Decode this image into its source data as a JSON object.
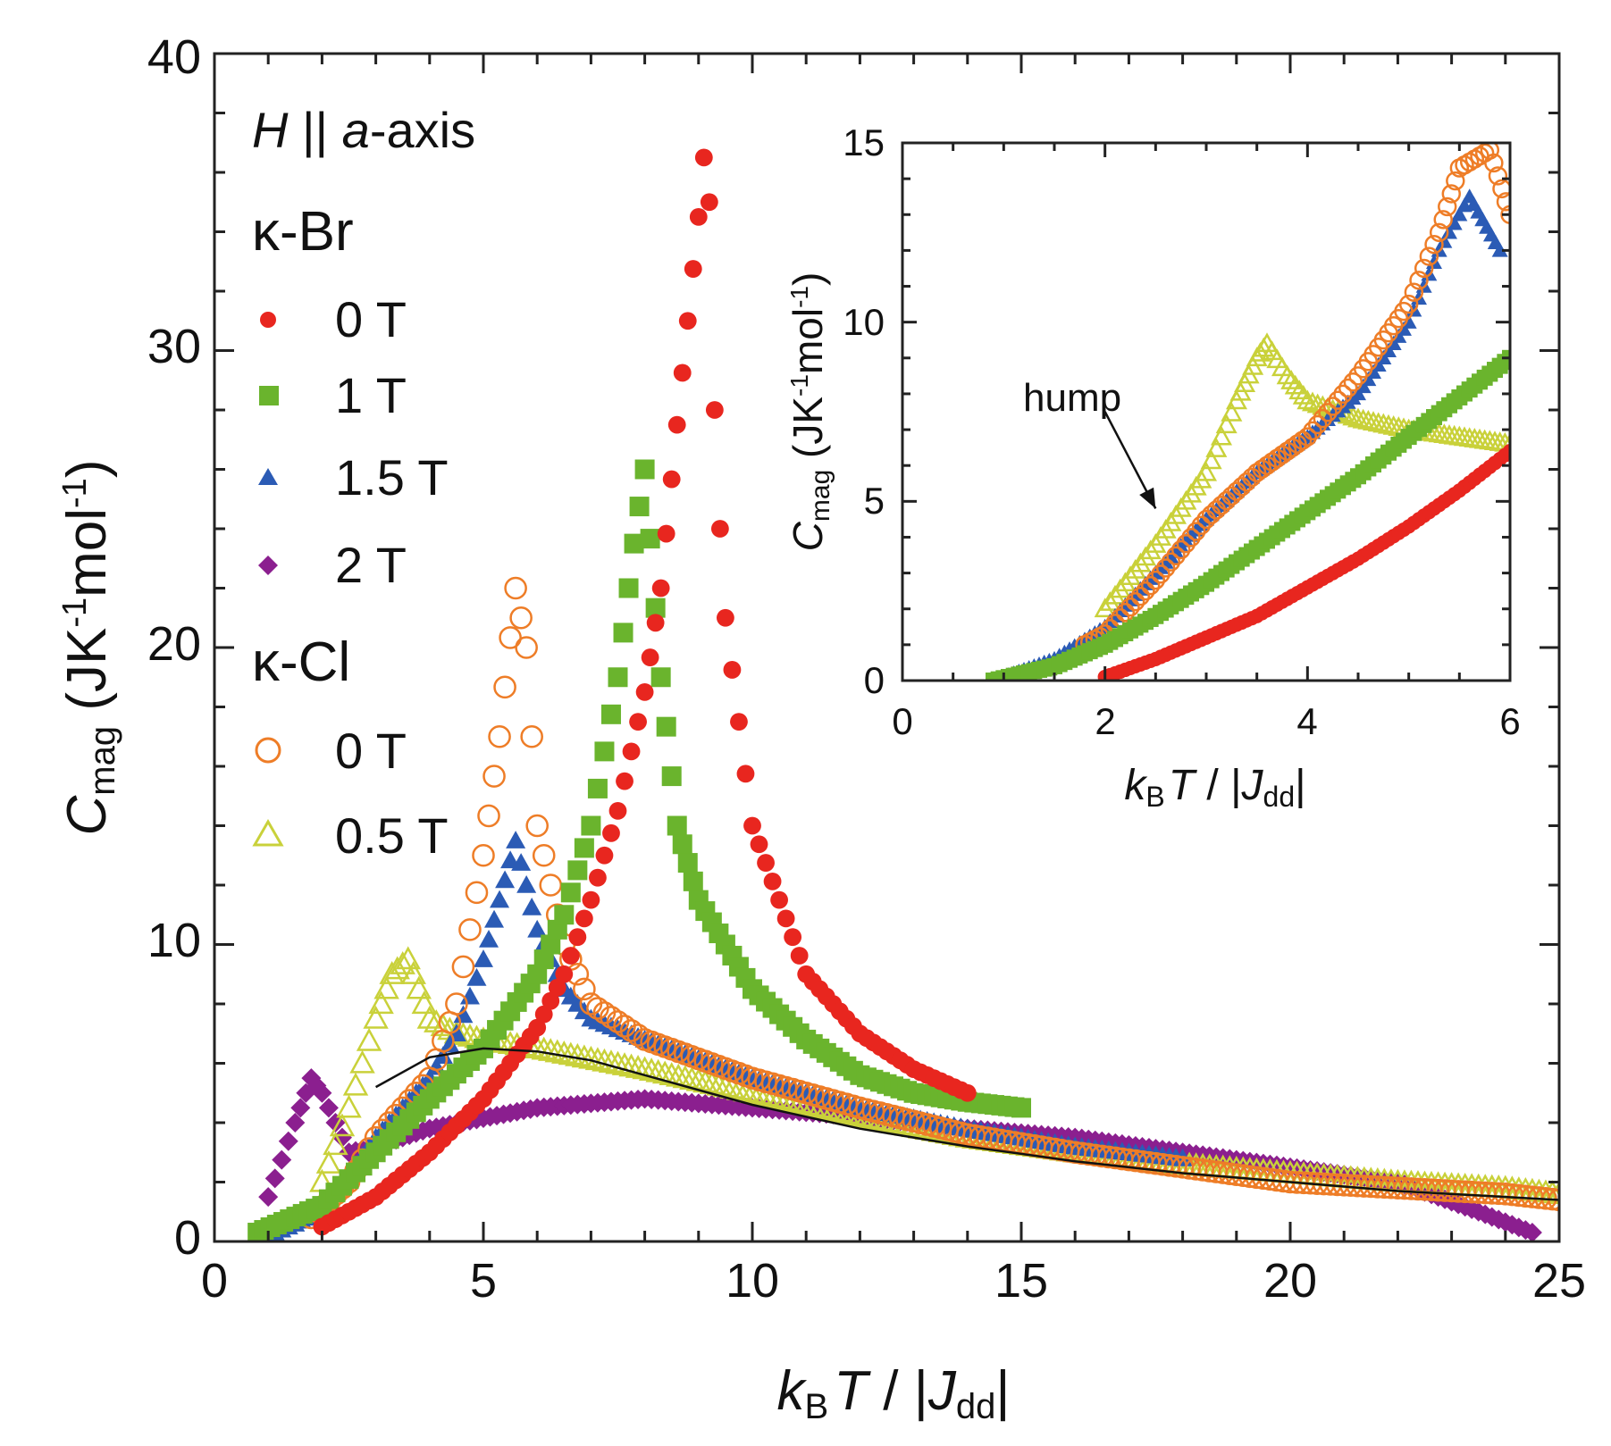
{
  "chart_data": [
    {
      "id": "main",
      "type": "scatter",
      "xlabel_parts": {
        "k": "k",
        "k_sub": "B",
        "T": "T",
        "sep": " / |",
        "J": "J",
        "J_sub": "dd",
        "end": "|"
      },
      "ylabel_parts": {
        "C": "C",
        "C_sub": "mag",
        "unit_a": " (JK",
        "exp1": "-1",
        "unit_b": "mol",
        "exp2": "-1",
        "unit_c": ")"
      },
      "xlim": [
        0,
        25
      ],
      "ylim": [
        0,
        40
      ],
      "xticks": [
        "0",
        "5",
        "10",
        "15",
        "20",
        "25"
      ],
      "yticks": [
        "0",
        "10",
        "20",
        "30",
        "40"
      ],
      "legend": {
        "title_H": "H",
        "title_rest": " || ",
        "title_a": "a",
        "title_axis": "-axis",
        "group1": "κ-Br",
        "group2": "κ-Cl",
        "placement": "top-left"
      },
      "series": [
        {
          "key": "br0",
          "group": "κ-Br",
          "name": "0 T",
          "color": "#e8261f",
          "marker": "circle-filled",
          "x": [
            2.0,
            3.0,
            4.0,
            5.0,
            6.0,
            6.5,
            7.0,
            7.5,
            8.0,
            8.3,
            8.6,
            8.8,
            9.0,
            9.1,
            9.2,
            9.3,
            9.4,
            9.5,
            10.0,
            11.0,
            12.0,
            13.0,
            14.0
          ],
          "y": [
            0.5,
            1.5,
            3.0,
            4.8,
            7.2,
            9.0,
            11.5,
            14.5,
            18.5,
            22.0,
            27.5,
            31.0,
            34.5,
            36.5,
            35.0,
            28.0,
            24.0,
            21.0,
            14.0,
            9.0,
            7.0,
            5.8,
            5.0
          ]
        },
        {
          "key": "br1",
          "group": "κ-Br",
          "name": "1 T",
          "color": "#6ab42d",
          "marker": "square-filled",
          "x": [
            0.8,
            2.0,
            3.0,
            4.0,
            5.0,
            6.0,
            6.5,
            7.0,
            7.5,
            7.8,
            8.0,
            8.3,
            8.6,
            9.0,
            10.0,
            11.0,
            12.0,
            13.0,
            14.0,
            15.0
          ],
          "y": [
            0.3,
            1.2,
            3.0,
            4.8,
            6.5,
            9.0,
            11.0,
            14.0,
            19.0,
            23.5,
            26.0,
            19.0,
            14.0,
            11.5,
            8.5,
            6.8,
            5.6,
            5.0,
            4.7,
            4.5
          ]
        },
        {
          "key": "br15",
          "group": "κ-Br",
          "name": "1.5 T",
          "color": "#2b5bb5",
          "marker": "triangle-filled",
          "x": [
            1.0,
            2.0,
            3.0,
            4.0,
            4.5,
            5.0,
            5.3,
            5.6,
            6.0,
            6.5,
            7.0,
            8.0,
            10.0,
            12.0,
            14.0,
            16.0,
            18.0
          ],
          "y": [
            0.2,
            1.0,
            3.5,
            5.5,
            7.0,
            9.5,
            11.5,
            13.5,
            10.5,
            8.5,
            7.5,
            6.8,
            5.5,
            4.5,
            3.8,
            3.2,
            2.8
          ]
        },
        {
          "key": "br2",
          "group": "κ-Br",
          "name": "2 T",
          "color": "#8b1f8f",
          "marker": "diamond-filled",
          "x": [
            1.0,
            1.5,
            1.8,
            2.0,
            2.5,
            3.0,
            4.0,
            6.0,
            8.0,
            10.0,
            12.0,
            14.0,
            16.0,
            18.0,
            20.0,
            22.0,
            23.5,
            24.5
          ],
          "y": [
            1.5,
            4.0,
            5.5,
            5.0,
            3.0,
            3.2,
            3.8,
            4.5,
            4.8,
            4.5,
            4.2,
            3.8,
            3.5,
            3.0,
            2.5,
            2.0,
            1.0,
            0.3
          ]
        },
        {
          "key": "cl0",
          "group": "κ-Cl",
          "name": "0 T",
          "color": "#ee7d27",
          "marker": "circle-open",
          "x": [
            1.8,
            2.5,
            3.0,
            4.0,
            4.5,
            5.0,
            5.3,
            5.6,
            5.8,
            6.0,
            6.5,
            7.0,
            8.0,
            10.0,
            12.0,
            14.0,
            16.0,
            18.0,
            20.0,
            22.0,
            24.0,
            25.0
          ],
          "y": [
            0.8,
            2.0,
            3.5,
            5.5,
            8.0,
            13.0,
            17.0,
            22.0,
            20.0,
            14.0,
            10.0,
            8.0,
            6.8,
            5.5,
            4.5,
            3.6,
            3.0,
            2.5,
            2.0,
            1.8,
            1.6,
            1.4
          ]
        },
        {
          "key": "cl05",
          "group": "κ-Cl",
          "name": "0.5 T",
          "color": "#c9d13a",
          "marker": "triangle-open",
          "x": [
            2.0,
            2.5,
            3.0,
            3.3,
            3.6,
            4.0,
            4.5,
            5.0,
            6.0,
            8.0,
            10.0,
            12.0,
            14.0,
            16.0,
            18.0,
            20.0,
            22.0,
            24.0,
            25.0
          ],
          "y": [
            2.0,
            4.5,
            7.5,
            9.0,
            9.5,
            7.5,
            7.0,
            6.8,
            6.5,
            5.8,
            5.0,
            4.2,
            3.5,
            3.0,
            2.6,
            2.3,
            2.0,
            1.8,
            1.6
          ]
        }
      ],
      "fit_curve": {
        "color": "#111111",
        "x": [
          3.0,
          4.0,
          5.0,
          6.0,
          7.0,
          8.0,
          10.0,
          12.0,
          14.0,
          16.0,
          18.0,
          20.0,
          22.0,
          25.0
        ],
        "y": [
          5.2,
          6.2,
          6.5,
          6.4,
          6.1,
          5.6,
          4.6,
          3.8,
          3.2,
          2.7,
          2.3,
          2.0,
          1.7,
          1.4
        ]
      }
    },
    {
      "id": "inset",
      "type": "scatter",
      "xlabel_parts": {
        "k": "k",
        "k_sub": "B",
        "T": "T",
        "sep": " / |",
        "J": "J",
        "J_sub": "dd",
        "end": "|"
      },
      "ylabel_parts": {
        "C": "C",
        "C_sub": "mag",
        "unit_a": " (JK",
        "exp1": "-1",
        "unit_b": "mol",
        "exp2": "-1",
        "unit_c": ")"
      },
      "xlim": [
        0,
        6
      ],
      "ylim": [
        0,
        15
      ],
      "xticks": [
        "0",
        "2",
        "4",
        "6"
      ],
      "yticks": [
        "0",
        "5",
        "10",
        "15"
      ],
      "annotation": "hump",
      "series": [
        {
          "key": "br0",
          "x": [
            2.0,
            2.5,
            3.0,
            3.5,
            4.0,
            4.5,
            5.0,
            5.5,
            6.0
          ],
          "y": [
            0.1,
            0.6,
            1.2,
            1.8,
            2.6,
            3.4,
            4.3,
            5.3,
            6.4
          ]
        },
        {
          "key": "br1",
          "x": [
            0.9,
            1.5,
            2.0,
            2.5,
            3.0,
            3.5,
            4.0,
            4.5,
            5.0,
            5.5,
            6.0
          ],
          "y": [
            0.0,
            0.4,
            1.0,
            1.8,
            2.7,
            3.7,
            4.7,
            5.7,
            6.8,
            7.9,
            9.0
          ]
        },
        {
          "key": "br15",
          "x": [
            0.9,
            1.5,
            2.0,
            2.5,
            3.0,
            3.5,
            4.0,
            4.5,
            5.0,
            5.3,
            5.6,
            5.9
          ],
          "y": [
            0.0,
            0.6,
            1.5,
            3.0,
            4.5,
            5.8,
            6.8,
            8.0,
            10.0,
            12.0,
            13.5,
            12.0
          ]
        },
        {
          "key": "cl0",
          "x": [
            1.8,
            2.0,
            2.5,
            3.0,
            3.5,
            4.0,
            4.5,
            5.0,
            5.3,
            5.5,
            5.8,
            6.0
          ],
          "y": [
            1.0,
            1.3,
            2.8,
            4.5,
            5.8,
            6.8,
            8.5,
            10.5,
            12.5,
            14.3,
            14.8,
            13.0
          ]
        },
        {
          "key": "cl05",
          "x": [
            2.0,
            2.5,
            3.0,
            3.3,
            3.5,
            3.6,
            3.8,
            4.0,
            4.5,
            5.0,
            5.5,
            6.0
          ],
          "y": [
            2.0,
            3.8,
            5.8,
            7.8,
            9.0,
            9.4,
            8.5,
            7.8,
            7.3,
            7.0,
            6.8,
            6.6
          ]
        }
      ],
      "hump_arrow": {
        "x0": 2.0,
        "y0": 7.5,
        "x1": 2.5,
        "y1": 4.8
      }
    }
  ]
}
